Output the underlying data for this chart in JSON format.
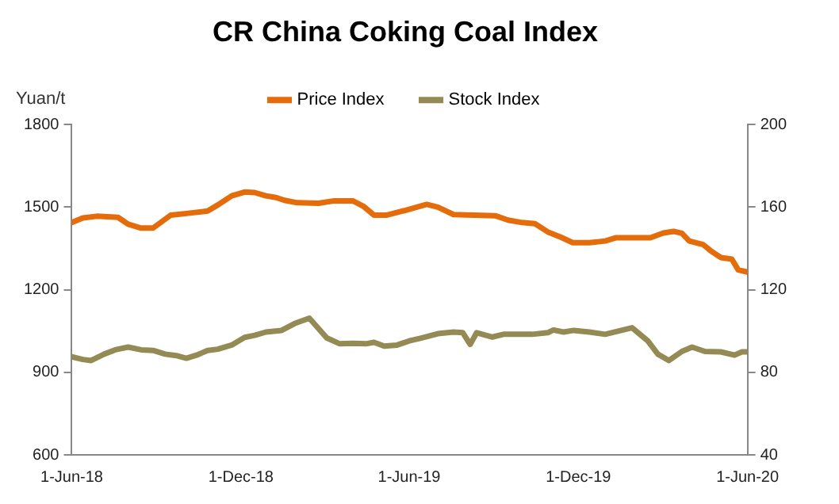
{
  "chart_data": {
    "type": "line",
    "title": "CR China Coking Coal Index",
    "ylabel": "Yuan/t",
    "legend": "top",
    "xlim": [
      "2018-06-01",
      "2020-06-01"
    ],
    "xticks": [
      {
        "value": "2018-06-01",
        "label": "1-Jun-18"
      },
      {
        "value": "2018-12-01",
        "label": "1-Dec-18"
      },
      {
        "value": "2019-06-01",
        "label": "1-Jun-19"
      },
      {
        "value": "2019-12-01",
        "label": "1-Dec-19"
      },
      {
        "value": "2020-06-01",
        "label": "1-Jun-20"
      }
    ],
    "ylim": [
      600,
      1800
    ],
    "yticks": [
      600,
      900,
      1200,
      1500,
      1800
    ],
    "y2lim": [
      40,
      200
    ],
    "y2ticks": [
      40,
      80,
      120,
      160,
      200
    ],
    "series": [
      {
        "name": "Price Index",
        "color": "#e46c0a",
        "x": [
          "2018-06-01",
          "2018-06-13",
          "2018-06-28",
          "2018-07-21",
          "2018-08-01",
          "2018-08-15",
          "2018-08-28",
          "2018-09-16",
          "2018-10-03",
          "2018-10-26",
          "2018-11-06",
          "2018-11-21",
          "2018-12-05",
          "2018-12-16",
          "2018-12-28",
          "2019-01-08",
          "2019-01-17",
          "2019-01-31",
          "2019-02-23",
          "2019-03-12",
          "2019-04-01",
          "2019-04-13",
          "2019-04-24",
          "2019-05-08",
          "2019-06-01",
          "2019-06-20",
          "2019-07-02",
          "2019-07-19",
          "2019-08-10",
          "2019-09-02",
          "2019-09-16",
          "2019-10-01",
          "2019-10-15",
          "2019-10-29",
          "2019-11-12",
          "2019-11-25",
          "2019-12-13",
          "2019-12-30",
          "2020-01-11",
          "2020-02-17",
          "2020-03-02",
          "2020-03-13",
          "2020-03-22",
          "2020-03-30",
          "2020-04-14",
          "2020-04-22",
          "2020-05-03",
          "2020-05-15",
          "2020-05-22",
          "2020-06-01"
        ],
        "values": [
          1444,
          1461,
          1467,
          1463,
          1438,
          1424,
          1424,
          1471,
          1477,
          1486,
          1508,
          1541,
          1555,
          1553,
          1541,
          1535,
          1525,
          1516,
          1514,
          1523,
          1523,
          1502,
          1471,
          1471,
          1492,
          1510,
          1500,
          1473,
          1471,
          1469,
          1453,
          1444,
          1440,
          1410,
          1391,
          1371,
          1371,
          1377,
          1389,
          1389,
          1406,
          1412,
          1405,
          1377,
          1364,
          1342,
          1317,
          1311,
          1272,
          1264
        ]
      },
      {
        "name": "Stock Index",
        "color": "#948a54",
        "axis": "y2",
        "x": [
          "2018-06-01",
          "2018-06-13",
          "2018-06-22",
          "2018-07-06",
          "2018-07-18",
          "2018-08-01",
          "2018-08-15",
          "2018-08-28",
          "2018-09-10",
          "2018-09-22",
          "2018-10-03",
          "2018-10-14",
          "2018-10-26",
          "2018-11-06",
          "2018-11-21",
          "2018-12-05",
          "2018-12-16",
          "2018-12-28",
          "2019-01-14",
          "2019-01-28",
          "2019-02-13",
          "2019-03-04",
          "2019-03-18",
          "2019-04-01",
          "2019-04-15",
          "2019-04-24",
          "2019-05-05",
          "2019-05-19",
          "2019-06-01",
          "2019-06-14",
          "2019-07-02",
          "2019-07-19",
          "2019-07-29",
          "2019-08-06",
          "2019-08-13",
          "2019-08-30",
          "2019-09-11",
          "2019-10-12",
          "2019-10-29",
          "2019-11-04",
          "2019-11-15",
          "2019-11-26",
          "2019-12-13",
          "2019-12-30",
          "2020-01-28",
          "2020-02-14",
          "2020-02-25",
          "2020-03-08",
          "2020-03-22",
          "2020-04-02",
          "2020-04-16",
          "2020-05-03",
          "2020-05-18",
          "2020-05-26",
          "2020-06-01"
        ],
        "values": [
          87.5,
          86.2,
          85.7,
          88.8,
          90.9,
          92.2,
          90.9,
          90.6,
          88.8,
          88.1,
          86.8,
          88.3,
          90.6,
          91.2,
          93.2,
          96.9,
          97.9,
          99.5,
          100.3,
          103.6,
          106.2,
          96.6,
          93.8,
          94.0,
          93.8,
          94.5,
          92.7,
          93.2,
          95.2,
          96.6,
          98.7,
          99.5,
          99.2,
          93.5,
          99.2,
          97.1,
          98.4,
          98.4,
          99.2,
          100.5,
          99.5,
          100.3,
          99.5,
          98.4,
          101.6,
          95.3,
          88.8,
          85.7,
          90.1,
          92.2,
          90.1,
          89.9,
          88.3,
          89.9,
          89.9
        ]
      }
    ]
  }
}
